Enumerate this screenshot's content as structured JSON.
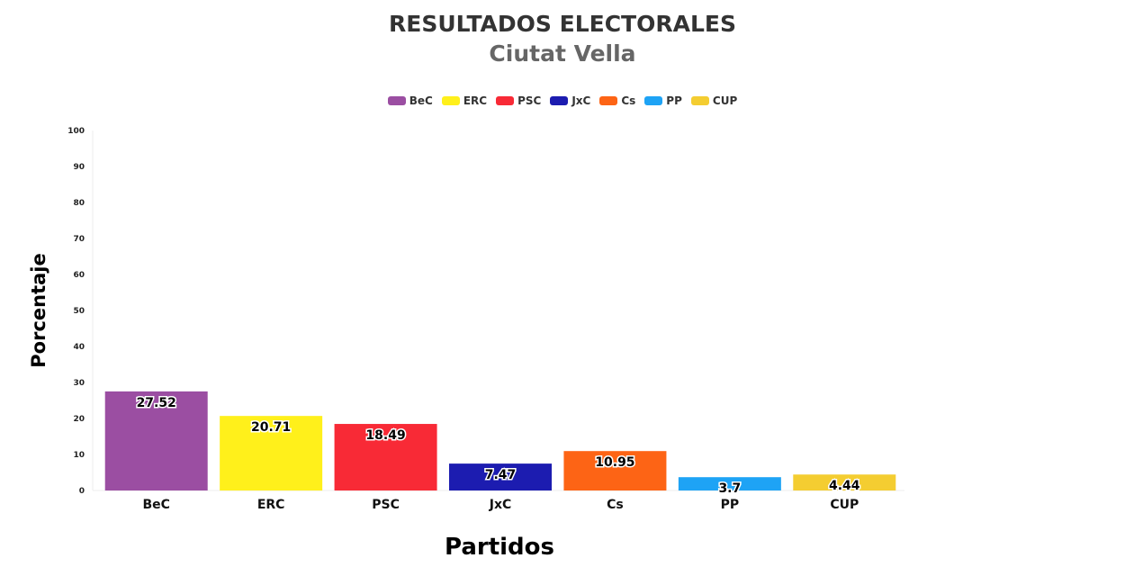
{
  "chart_data": {
    "type": "bar",
    "title": "RESULTADOS ELECTORALES",
    "subtitle": "Ciutat Vella",
    "xlabel": "Partidos",
    "ylabel": "Porcentaje",
    "categories": [
      "BeC",
      "ERC",
      "PSC",
      "JxC",
      "Cs",
      "PP",
      "CUP"
    ],
    "values": [
      27.52,
      20.71,
      18.49,
      7.47,
      10.95,
      3.7,
      4.44
    ],
    "colors": [
      "#9b4ea2",
      "#fff01b",
      "#f82a36",
      "#1c1cb0",
      "#fd6415",
      "#1ea3f5",
      "#f4cd31"
    ],
    "ylim": [
      0,
      100
    ],
    "yticks": [
      0,
      10,
      20,
      30,
      40,
      50,
      60,
      70,
      80,
      90,
      100
    ],
    "legend_position": "top",
    "grid": false
  }
}
